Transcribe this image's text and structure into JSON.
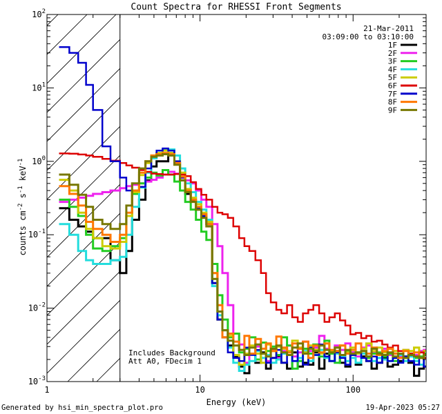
{
  "chart_data": {
    "type": "line",
    "title": "Count Spectra for RHESSI Front Segments",
    "xlabel": "Energy (keV)",
    "ylabel": {
      "main": "counts cm",
      "exp1": "-2",
      "mid1": " s",
      "exp2": "-1",
      "mid2": " keV",
      "exp3": "-1"
    },
    "xscale": "log",
    "yscale": "log",
    "xlim": [
      1,
      300
    ],
    "ylim": [
      0.001,
      100
    ],
    "x_ticks": [
      {
        "v": 1,
        "label": "1"
      },
      {
        "v": 10,
        "label": "10"
      },
      {
        "v": 100,
        "label": "100"
      }
    ],
    "y_ticks": [
      {
        "v": 100,
        "base": "10",
        "exp": "2"
      },
      {
        "v": 10,
        "base": "10",
        "exp": "1"
      },
      {
        "v": 1,
        "base": "10",
        "exp": "0"
      },
      {
        "v": 0.1,
        "base": "10",
        "exp": "-1"
      },
      {
        "v": 0.01,
        "base": "10",
        "exp": "-2"
      },
      {
        "v": 0.001,
        "base": "10",
        "exp": "-3"
      }
    ],
    "date": "21-Mar-2011",
    "time_range": "03:09:00 to 03:10:00",
    "annotations": [
      "Includes Background",
      "Att A0, FDecim 1"
    ],
    "hatched_below_keV": 3,
    "energy_edges": [
      1.2,
      1.4,
      1.6,
      1.8,
      2.0,
      2.3,
      2.6,
      3.0,
      3.3,
      3.6,
      4.0,
      4.4,
      4.8,
      5.2,
      5.7,
      6.2,
      6.8,
      7.4,
      8.0,
      8.7,
      9.4,
      10.2,
      11.0,
      12.0,
      13.0,
      14.0,
      15.2,
      16.5,
      18.0,
      19.5,
      21.0,
      23.0,
      25.0,
      27.0,
      29.0,
      31.5,
      34.0,
      37.0,
      40.0,
      43.5,
      47.0,
      51.0,
      55.0,
      60.0,
      65.0,
      70.0,
      76.0,
      82.0,
      89.0,
      96.0,
      104.0,
      113.0,
      122.0,
      132.0,
      143.0,
      155.0,
      168.0,
      182.0,
      197.0,
      213.0,
      230.0,
      250.0,
      270.0,
      290.0
    ],
    "series": [
      {
        "name": "1F",
        "color": "#000000",
        "values": [
          0.23,
          0.16,
          0.13,
          0.11,
          0.09,
          0.09,
          0.045,
          0.03,
          0.06,
          0.16,
          0.3,
          0.55,
          0.85,
          1.0,
          1.0,
          1.3,
          0.95,
          0.55,
          0.36,
          0.29,
          0.22,
          0.18,
          0.14,
          0.022,
          0.007,
          0.004,
          0.0031,
          0.0022,
          0.0016,
          0.0013,
          0.0024,
          0.0018,
          0.0025,
          0.0015,
          0.0021,
          0.0022,
          0.0018,
          0.0015,
          0.0025,
          0.0016,
          0.0018,
          0.0017,
          0.0025,
          0.0015,
          0.0024,
          0.0019,
          0.0026,
          0.0018,
          0.0016,
          0.0025,
          0.0017,
          0.0022,
          0.0019,
          0.0015,
          0.0018,
          0.0021,
          0.0016,
          0.0017,
          0.0019,
          0.0022,
          0.0018,
          0.0012,
          0.0015,
          0.0016
        ]
      },
      {
        "name": "2F",
        "color": "#ee22ee",
        "values": [
          0.28,
          0.3,
          0.32,
          0.34,
          0.36,
          0.38,
          0.4,
          0.43,
          0.46,
          0.48,
          0.5,
          0.53,
          0.56,
          0.6,
          0.66,
          0.72,
          0.68,
          0.6,
          0.55,
          0.5,
          0.4,
          0.3,
          0.24,
          0.14,
          0.07,
          0.03,
          0.011,
          0.0045,
          0.0032,
          0.0018,
          0.0024,
          0.003,
          0.0024,
          0.0019,
          0.0027,
          0.0021,
          0.0026,
          0.0031,
          0.0022,
          0.0025,
          0.0035,
          0.0026,
          0.0029,
          0.0042,
          0.0028,
          0.0024,
          0.0031,
          0.0027,
          0.0033,
          0.0025,
          0.0022,
          0.0029,
          0.0031,
          0.0025,
          0.0024,
          0.0028,
          0.0023,
          0.0026,
          0.0022,
          0.0027,
          0.0024,
          0.0023,
          0.0026,
          0.0027
        ]
      },
      {
        "name": "3F",
        "color": "#22cc22",
        "values": [
          0.3,
          0.24,
          0.18,
          0.1,
          0.065,
          0.06,
          0.07,
          0.09,
          0.18,
          0.36,
          0.5,
          0.6,
          0.7,
          0.64,
          0.76,
          0.66,
          0.53,
          0.4,
          0.28,
          0.22,
          0.16,
          0.11,
          0.085,
          0.04,
          0.015,
          0.007,
          0.004,
          0.0045,
          0.0025,
          0.0028,
          0.004,
          0.002,
          0.0034,
          0.0026,
          0.003,
          0.0023,
          0.004,
          0.0031,
          0.0015,
          0.0019,
          0.0028,
          0.0024,
          0.0032,
          0.0022,
          0.0036,
          0.0024,
          0.0018,
          0.0023,
          0.0026,
          0.0023,
          0.0025,
          0.0026,
          0.0021,
          0.0024,
          0.0025,
          0.0022,
          0.0024,
          0.0019,
          0.0023,
          0.0022,
          0.0024,
          0.0021,
          0.0022,
          0.0024
        ]
      },
      {
        "name": "4F",
        "color": "#22dddd",
        "values": [
          0.14,
          0.1,
          0.06,
          0.045,
          0.04,
          0.04,
          0.045,
          0.05,
          0.1,
          0.24,
          0.44,
          0.7,
          1.1,
          1.3,
          1.45,
          1.45,
          1.2,
          0.8,
          0.5,
          0.38,
          0.28,
          0.22,
          0.16,
          0.02,
          0.008,
          0.005,
          0.0029,
          0.0018,
          0.0014,
          0.0017,
          0.0019,
          0.0026,
          0.0021,
          0.0023,
          0.0018,
          0.002,
          0.0024,
          0.0026,
          0.0019,
          0.0021,
          0.0026,
          0.0019,
          0.0023,
          0.0027,
          0.0021,
          0.0019,
          0.0024,
          0.0022,
          0.0019,
          0.0021,
          0.0018,
          0.0024,
          0.0022,
          0.0019,
          0.0021,
          0.002,
          0.0019,
          0.0021,
          0.0023,
          0.0019,
          0.0022,
          0.0019,
          0.0017,
          0.0021
        ]
      },
      {
        "name": "5F",
        "color": "#cccc00",
        "values": [
          0.56,
          0.4,
          0.2,
          0.12,
          0.09,
          0.07,
          0.065,
          0.08,
          0.18,
          0.38,
          0.65,
          0.95,
          1.2,
          1.3,
          1.4,
          1.3,
          1.0,
          0.7,
          0.42,
          0.32,
          0.26,
          0.2,
          0.15,
          0.03,
          0.009,
          0.005,
          0.0042,
          0.0023,
          0.0017,
          0.0024,
          0.0031,
          0.0024,
          0.0018,
          0.0032,
          0.0026,
          0.003,
          0.0028,
          0.0026,
          0.0036,
          0.0029,
          0.0025,
          0.0031,
          0.0027,
          0.0024,
          0.0033,
          0.0026,
          0.0029,
          0.0031,
          0.0025,
          0.0029,
          0.0024,
          0.0028,
          0.0033,
          0.0026,
          0.0029,
          0.0025,
          0.0028,
          0.0026,
          0.0024,
          0.0027,
          0.0026,
          0.0029,
          0.0025,
          0.0026
        ]
      },
      {
        "name": "6F",
        "color": "#dd0000",
        "values": [
          1.28,
          1.27,
          1.24,
          1.2,
          1.15,
          1.08,
          1.02,
          0.95,
          0.88,
          0.82,
          0.76,
          0.72,
          0.68,
          0.67,
          0.66,
          0.66,
          0.67,
          0.66,
          0.63,
          0.52,
          0.42,
          0.35,
          0.3,
          0.24,
          0.2,
          0.19,
          0.17,
          0.13,
          0.09,
          0.07,
          0.06,
          0.045,
          0.03,
          0.016,
          0.012,
          0.0095,
          0.0085,
          0.011,
          0.0075,
          0.0065,
          0.0085,
          0.0095,
          0.011,
          0.0085,
          0.0065,
          0.0075,
          0.0085,
          0.0068,
          0.0058,
          0.0044,
          0.0046,
          0.0039,
          0.0042,
          0.0035,
          0.0036,
          0.0032,
          0.0029,
          0.0031,
          0.0026,
          0.0026,
          0.0024,
          0.0022,
          0.0025,
          0.0021
        ]
      },
      {
        "name": "7F",
        "color": "#0000cc",
        "values": [
          36,
          30,
          22,
          11,
          5,
          1.6,
          1.0,
          0.6,
          0.4,
          0.4,
          0.45,
          0.8,
          1.2,
          1.4,
          1.5,
          1.4,
          1.0,
          0.6,
          0.4,
          0.3,
          0.23,
          0.18,
          0.14,
          0.022,
          0.007,
          0.005,
          0.0025,
          0.0021,
          0.0019,
          0.0029,
          0.0023,
          0.0027,
          0.0024,
          0.0018,
          0.0021,
          0.0027,
          0.0018,
          0.0023,
          0.0019,
          0.0028,
          0.0017,
          0.0029,
          0.0023,
          0.0032,
          0.0022,
          0.0019,
          0.0025,
          0.0021,
          0.0017,
          0.0023,
          0.0025,
          0.0021,
          0.0019,
          0.0022,
          0.0018,
          0.0023,
          0.0019,
          0.0021,
          0.0018,
          0.0022,
          0.0019,
          0.0017,
          0.0021,
          0.0016
        ]
      },
      {
        "name": "8F",
        "color": "#ff7700",
        "values": [
          0.46,
          0.36,
          0.25,
          0.15,
          0.12,
          0.1,
          0.08,
          0.1,
          0.2,
          0.4,
          0.7,
          1.0,
          1.2,
          1.25,
          1.3,
          1.25,
          0.95,
          0.62,
          0.4,
          0.3,
          0.24,
          0.19,
          0.14,
          0.03,
          0.011,
          0.004,
          0.0045,
          0.0035,
          0.0027,
          0.0042,
          0.0024,
          0.0038,
          0.0028,
          0.0033,
          0.0026,
          0.0041,
          0.0029,
          0.0025,
          0.0033,
          0.0028,
          0.0035,
          0.0021,
          0.0031,
          0.0025,
          0.0033,
          0.0027,
          0.0026,
          0.0031,
          0.0024,
          0.0027,
          0.0033,
          0.0026,
          0.0024,
          0.0029,
          0.0023,
          0.0026,
          0.0028,
          0.0024,
          0.0021,
          0.0026,
          0.0023,
          0.0025,
          0.0021,
          0.0023
        ]
      },
      {
        "name": "9F",
        "color": "#777700",
        "values": [
          0.66,
          0.48,
          0.35,
          0.24,
          0.16,
          0.14,
          0.12,
          0.14,
          0.25,
          0.5,
          0.8,
          1.0,
          1.15,
          1.2,
          1.25,
          1.2,
          0.9,
          0.55,
          0.38,
          0.28,
          0.22,
          0.17,
          0.13,
          0.025,
          0.009,
          0.005,
          0.0036,
          0.0031,
          0.0027,
          0.0023,
          0.0029,
          0.0032,
          0.0024,
          0.0022,
          0.0028,
          0.0031,
          0.0025,
          0.0023,
          0.0029,
          0.0033,
          0.0024,
          0.0028,
          0.0026,
          0.0031,
          0.0027,
          0.0025,
          0.0029,
          0.0023,
          0.0027,
          0.0024,
          0.0025,
          0.0026,
          0.0022,
          0.0028,
          0.0024,
          0.0023,
          0.0025,
          0.0022,
          0.0024,
          0.0021,
          0.0023,
          0.0022,
          0.0021,
          0.0023
        ]
      }
    ]
  },
  "footer": {
    "generated_by": "Generated by hsi_min_spectra_plot.pro",
    "date_stamp": "19-Apr-2023 05:27"
  }
}
